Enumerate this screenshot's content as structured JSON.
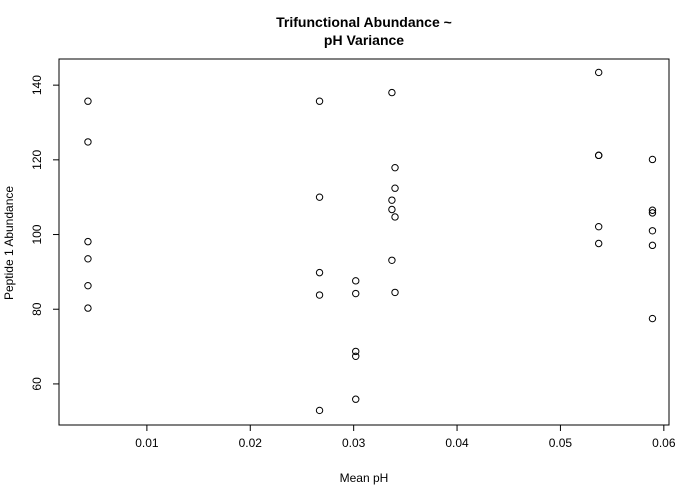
{
  "chart_data": {
    "type": "scatter",
    "title": [
      "Trifunctional Abundance ~",
      "pH Variance"
    ],
    "xlabel": "Mean pH",
    "ylabel": "Peptide 1 Abundance",
    "xlim": [
      0.0015,
      0.0605
    ],
    "ylim": [
      49,
      147
    ],
    "xticks": [
      0.01,
      0.02,
      0.03,
      0.04,
      0.05,
      0.06
    ],
    "xtick_labels": [
      "0.01",
      "0.02",
      "0.03",
      "0.04",
      "0.05",
      "0.06"
    ],
    "yticks": [
      60,
      80,
      100,
      120,
      140
    ],
    "ytick_labels": [
      "60",
      "80",
      "100",
      "120",
      "140"
    ],
    "grid": false,
    "marker": "open-circle",
    "points": [
      {
        "x": 0.0043,
        "y": 135.7
      },
      {
        "x": 0.0043,
        "y": 124.8
      },
      {
        "x": 0.0043,
        "y": 98.1
      },
      {
        "x": 0.0043,
        "y": 93.5
      },
      {
        "x": 0.0043,
        "y": 86.3
      },
      {
        "x": 0.0043,
        "y": 80.3
      },
      {
        "x": 0.0267,
        "y": 135.7
      },
      {
        "x": 0.0267,
        "y": 110.0
      },
      {
        "x": 0.0267,
        "y": 89.8
      },
      {
        "x": 0.0267,
        "y": 83.8
      },
      {
        "x": 0.0267,
        "y": 52.9
      },
      {
        "x": 0.0302,
        "y": 87.6
      },
      {
        "x": 0.0302,
        "y": 84.2
      },
      {
        "x": 0.0302,
        "y": 68.7
      },
      {
        "x": 0.0302,
        "y": 67.4
      },
      {
        "x": 0.0302,
        "y": 55.9
      },
      {
        "x": 0.0337,
        "y": 138.0
      },
      {
        "x": 0.034,
        "y": 117.9
      },
      {
        "x": 0.034,
        "y": 112.4
      },
      {
        "x": 0.0337,
        "y": 109.2
      },
      {
        "x": 0.0337,
        "y": 106.7
      },
      {
        "x": 0.034,
        "y": 104.7
      },
      {
        "x": 0.0337,
        "y": 93.1
      },
      {
        "x": 0.034,
        "y": 84.5
      },
      {
        "x": 0.0537,
        "y": 143.4
      },
      {
        "x": 0.0537,
        "y": 121.2
      },
      {
        "x": 0.0537,
        "y": 121.2
      },
      {
        "x": 0.0537,
        "y": 102.1
      },
      {
        "x": 0.0537,
        "y": 97.6
      },
      {
        "x": 0.0589,
        "y": 120.1
      },
      {
        "x": 0.0589,
        "y": 106.5
      },
      {
        "x": 0.0589,
        "y": 105.8
      },
      {
        "x": 0.0589,
        "y": 101.0
      },
      {
        "x": 0.0589,
        "y": 97.1
      },
      {
        "x": 0.0589,
        "y": 77.5
      }
    ]
  }
}
